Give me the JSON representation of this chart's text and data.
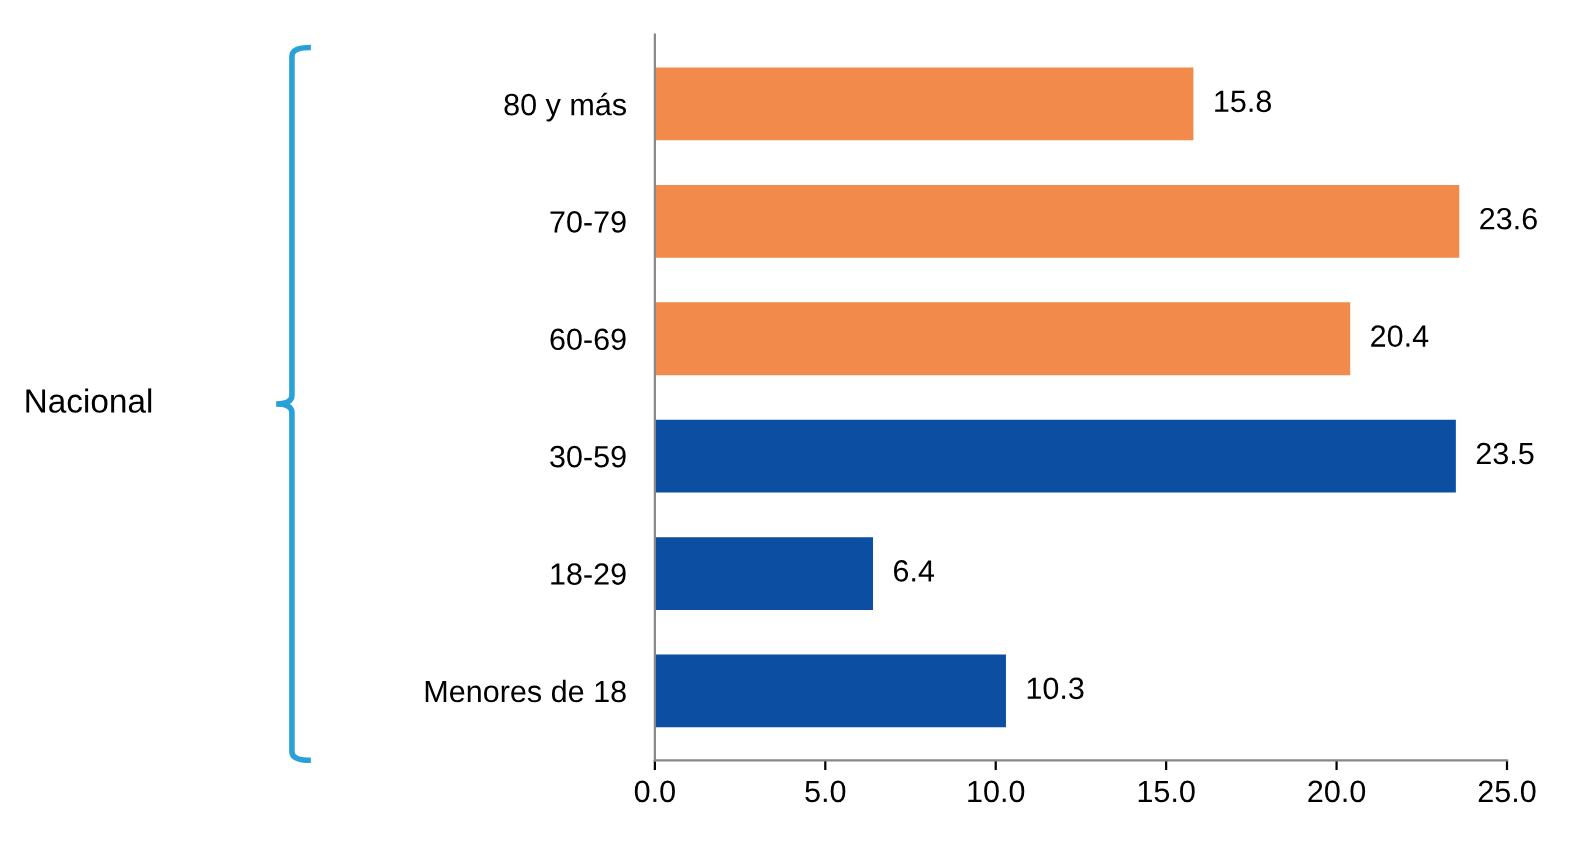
{
  "chart_data": {
    "type": "bar",
    "orientation": "horizontal",
    "categories": [
      "80 y más",
      "70-79",
      "60-69",
      "30-59",
      "18-29",
      "Menores de 18"
    ],
    "values": [
      15.8,
      23.6,
      20.4,
      23.5,
      6.4,
      10.3
    ],
    "colors": [
      "#f28a4c",
      "#f28a4c",
      "#f28a4c",
      "#0b4ea2",
      "#0b4ea2",
      "#0b4ea2"
    ],
    "xlim": [
      0,
      25
    ],
    "xticks": [
      {
        "value": 0,
        "label": "0.0"
      },
      {
        "value": 5,
        "label": "5.0"
      },
      {
        "value": 10,
        "label": "10.0"
      },
      {
        "value": 15,
        "label": "15.0"
      },
      {
        "value": 20,
        "label": "20.0"
      },
      {
        "value": 25,
        "label": "25.0"
      }
    ],
    "data_labels": true,
    "grid": false,
    "legend": false,
    "annotations": [
      "Nacional"
    ]
  }
}
